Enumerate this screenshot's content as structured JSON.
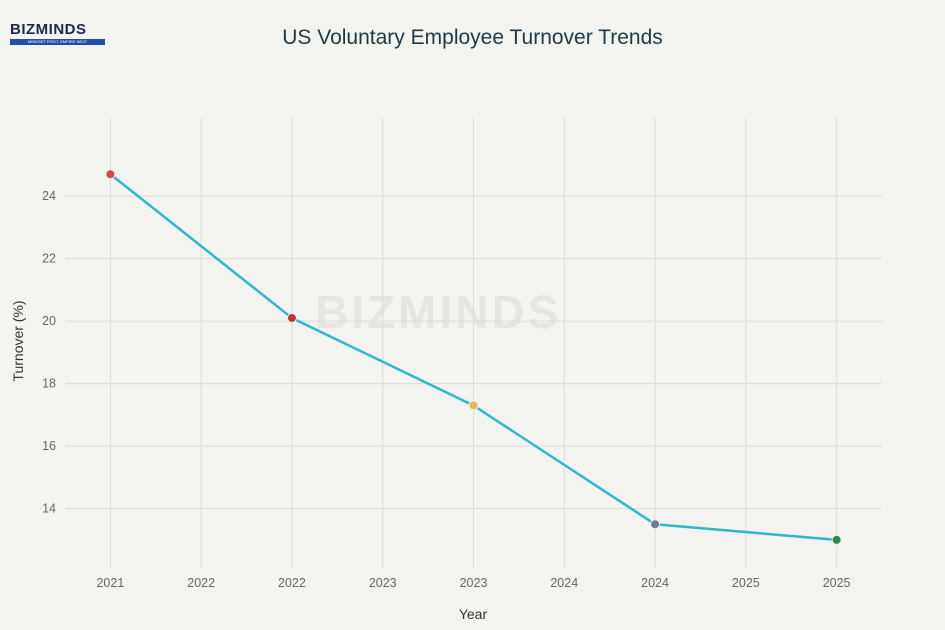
{
  "logo": {
    "text": "BIZMINDS",
    "tagline": "MINDSET FIRST, EMPIRE NEXT"
  },
  "watermark": "BIZMINDS",
  "chart_data": {
    "type": "line",
    "title": "US Voluntary Employee Turnover Trends",
    "xlabel": "Year",
    "ylabel": "Turnover (%)",
    "x": [
      2021,
      2022,
      2023,
      2024,
      2025
    ],
    "values": [
      24.7,
      20.1,
      17.3,
      13.5,
      13.0
    ],
    "marker_colors": [
      "#cc4a3f",
      "#b83a38",
      "#e8bb4e",
      "#6e7b93",
      "#2e8a55"
    ],
    "line_color": "#2fb8cc",
    "xlim": [
      2020.75,
      2025.25
    ],
    "ylim": [
      12.1,
      26.5
    ],
    "x_ticks": [
      2021,
      2021.5,
      2022,
      2022.5,
      2023,
      2023.5,
      2024,
      2024.5,
      2025
    ],
    "x_tick_labels": [
      "2021",
      "2022",
      "2022",
      "2023",
      "2023",
      "2024",
      "2024",
      "2025",
      "2025"
    ],
    "y_ticks": [
      14,
      16,
      18,
      20,
      22,
      24
    ],
    "y_tick_labels": [
      "14",
      "16",
      "18",
      "20",
      "22",
      "24"
    ],
    "grid": true
  }
}
